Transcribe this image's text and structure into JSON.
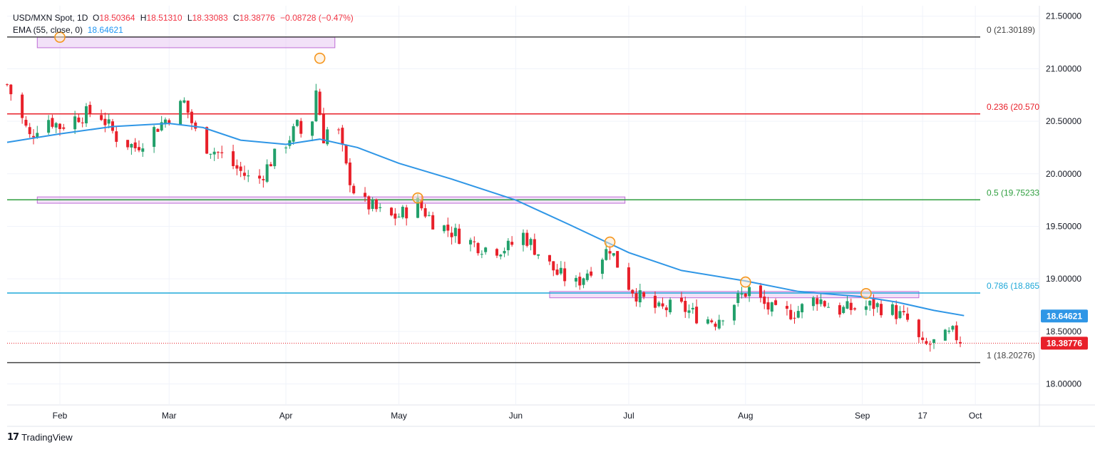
{
  "header": {
    "symbol": "USD/MXN Spot, 1D",
    "open_label": "O",
    "open": "18.50364",
    "high_label": "H",
    "high": "18.51310",
    "low_label": "L",
    "low": "18.33083",
    "close_label": "C",
    "close": "18.38776",
    "change": "−0.08728 (−0.47%)",
    "ema_label": "EMA (55, close, 0)",
    "ema_value": "18.64621"
  },
  "footer": {
    "brand": "TradingView"
  },
  "colors": {
    "up": "#22a06b",
    "down": "#e8202a",
    "ema": "#2f96e6",
    "zone": "#e7c8f2",
    "zone_border": "#bf6cd6",
    "marker": "#f5961e"
  },
  "chart_data": {
    "type": "candlestick",
    "y_axis": {
      "min": 17.8,
      "max": 21.6,
      "ticks": [
        "21.50000",
        "21.00000",
        "20.50000",
        "20.00000",
        "19.50000",
        "19.00000",
        "18.50000",
        "18.00000"
      ],
      "tick_values": [
        21.5,
        21.0,
        20.5,
        20.0,
        19.5,
        19.0,
        18.5,
        18.0
      ]
    },
    "x_axis": {
      "ticks": [
        "Feb",
        "Mar",
        "Apr",
        "May",
        "Jun",
        "Jul",
        "Aug",
        "Sep",
        "17",
        "Oct"
      ],
      "tick_dates": [
        "2024-02-01",
        "2024-03-01",
        "2024-04-01",
        "2024-05-01",
        "2024-06-01",
        "2024-07-01",
        "2024-08-01",
        "2024-09-01",
        "2024-09-17",
        "2024-10-01"
      ],
      "range": [
        "2024-01-18",
        "2024-10-18"
      ]
    },
    "fib_levels": [
      {
        "label": "0 (21.30189)",
        "value": 21.30189,
        "color": "#444444"
      },
      {
        "label": "0.236 (20.570",
        "value": 20.57,
        "color": "#e8202a"
      },
      {
        "label": "0.5 (19.75233",
        "value": 19.75233,
        "color": "#2e9e3e"
      },
      {
        "label": "0.786 (18.865",
        "value": 18.865,
        "color": "#1fa8d8"
      },
      {
        "label": "1 (18.20276)",
        "value": 18.20276,
        "color": "#444444"
      }
    ],
    "price_labels": [
      {
        "text": "18.64621",
        "value": 18.64621,
        "color": "#2f96e6"
      },
      {
        "text": "18.38776",
        "value": 18.38776,
        "color": "#e8202a"
      }
    ],
    "zones": [
      {
        "from": "2024-01-26",
        "to": "2024-04-14",
        "top": 21.3,
        "bottom": 21.2
      },
      {
        "from": "2024-01-26",
        "to": "2024-06-30",
        "top": 19.78,
        "bottom": 19.72
      },
      {
        "from": "2024-06-10",
        "to": "2024-09-16",
        "top": 18.88,
        "bottom": 18.82
      }
    ],
    "markers": [
      {
        "date": "2024-02-01",
        "value": 21.3
      },
      {
        "date": "2024-04-10",
        "value": 21.1
      },
      {
        "date": "2024-05-06",
        "value": 19.77
      },
      {
        "date": "2024-06-26",
        "value": 19.35
      },
      {
        "date": "2024-08-01",
        "value": 18.97
      },
      {
        "date": "2024-09-02",
        "value": 18.86
      }
    ],
    "ema_line": [
      [
        "2024-01-18",
        20.3
      ],
      [
        "2024-02-01",
        20.38
      ],
      [
        "2024-02-15",
        20.45
      ],
      [
        "2024-03-01",
        20.48
      ],
      [
        "2024-03-10",
        20.44
      ],
      [
        "2024-03-20",
        20.32
      ],
      [
        "2024-04-01",
        20.28
      ],
      [
        "2024-04-10",
        20.33
      ],
      [
        "2024-04-20",
        20.25
      ],
      [
        "2024-05-01",
        20.1
      ],
      [
        "2024-05-15",
        19.95
      ],
      [
        "2024-06-01",
        19.75
      ],
      [
        "2024-06-15",
        19.52
      ],
      [
        "2024-07-01",
        19.25
      ],
      [
        "2024-07-15",
        19.08
      ],
      [
        "2024-08-01",
        18.98
      ],
      [
        "2024-08-15",
        18.88
      ],
      [
        "2024-09-01",
        18.83
      ],
      [
        "2024-09-10",
        18.78
      ],
      [
        "2024-09-20",
        18.7
      ],
      [
        "2024-09-28",
        18.65
      ]
    ],
    "close_series": [
      [
        "2024-01-18",
        20.85
      ],
      [
        "2024-01-24",
        20.35
      ],
      [
        "2024-01-28",
        20.55
      ],
      [
        "2024-02-01",
        20.45
      ],
      [
        "2024-02-06",
        20.55
      ],
      [
        "2024-02-11",
        20.6
      ],
      [
        "2024-02-16",
        20.35
      ],
      [
        "2024-02-21",
        20.25
      ],
      [
        "2024-02-26",
        20.42
      ],
      [
        "2024-03-01",
        20.55
      ],
      [
        "2024-03-05",
        20.68
      ],
      [
        "2024-03-09",
        20.3
      ],
      [
        "2024-03-14",
        20.2
      ],
      [
        "2024-03-19",
        20.05
      ],
      [
        "2024-03-24",
        19.9
      ],
      [
        "2024-03-28",
        20.12
      ],
      [
        "2024-04-01",
        20.3
      ],
      [
        "2024-04-04",
        20.45
      ],
      [
        "2024-04-07",
        20.25
      ],
      [
        "2024-04-09",
        20.8
      ],
      [
        "2024-04-11",
        20.35
      ],
      [
        "2024-04-14",
        20.55
      ],
      [
        "2024-04-17",
        20.05
      ],
      [
        "2024-04-20",
        19.75
      ],
      [
        "2024-04-24",
        19.68
      ],
      [
        "2024-04-28",
        19.58
      ],
      [
        "2024-05-01",
        19.6
      ],
      [
        "2024-05-06",
        19.72
      ],
      [
        "2024-05-10",
        19.55
      ],
      [
        "2024-05-15",
        19.45
      ],
      [
        "2024-05-20",
        19.35
      ],
      [
        "2024-05-25",
        19.28
      ],
      [
        "2024-05-30",
        19.3
      ],
      [
        "2024-06-03",
        19.42
      ],
      [
        "2024-06-07",
        19.25
      ],
      [
        "2024-06-12",
        19.05
      ],
      [
        "2024-06-17",
        18.95
      ],
      [
        "2024-06-22",
        19.15
      ],
      [
        "2024-06-26",
        19.3
      ],
      [
        "2024-06-30",
        18.98
      ],
      [
        "2024-07-04",
        18.82
      ],
      [
        "2024-07-09",
        18.7
      ],
      [
        "2024-07-14",
        18.75
      ],
      [
        "2024-07-19",
        18.65
      ],
      [
        "2024-07-24",
        18.6
      ],
      [
        "2024-07-29",
        18.78
      ],
      [
        "2024-08-02",
        18.9
      ],
      [
        "2024-08-06",
        18.75
      ],
      [
        "2024-08-10",
        18.65
      ],
      [
        "2024-08-15",
        18.7
      ],
      [
        "2024-08-20",
        18.82
      ],
      [
        "2024-08-25",
        18.7
      ],
      [
        "2024-08-30",
        18.72
      ],
      [
        "2024-09-04",
        18.75
      ],
      [
        "2024-09-09",
        18.7
      ],
      [
        "2024-09-13",
        18.6
      ],
      [
        "2024-09-17",
        18.35
      ],
      [
        "2024-09-21",
        18.4
      ],
      [
        "2024-09-25",
        18.48
      ],
      [
        "2024-09-28",
        18.39
      ]
    ]
  }
}
